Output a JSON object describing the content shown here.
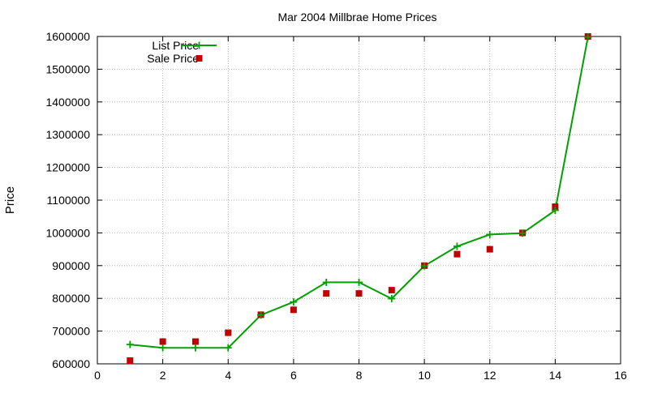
{
  "chart_data": {
    "type": "line",
    "title": "Mar 2004 Millbrae Home Prices",
    "xlabel": "",
    "ylabel": "Price",
    "xlim": [
      0,
      16
    ],
    "ylim": [
      600000,
      1600000
    ],
    "xticks": [
      "0",
      "2",
      "4",
      "6",
      "8",
      "10",
      "12",
      "14",
      "16"
    ],
    "yticks": [
      "600000",
      "700000",
      "800000",
      "900000",
      "1000000",
      "1100000",
      "1200000",
      "1300000",
      "1400000",
      "1500000",
      "1600000"
    ],
    "grid": true,
    "legend_position": "top-left",
    "series": [
      {
        "name": "List Price",
        "style": "line-with-plus-markers",
        "color": "#00a000",
        "x": [
          1,
          2,
          3,
          4,
          5,
          6,
          7,
          8,
          9,
          10,
          11,
          12,
          13,
          14,
          15
        ],
        "y": [
          659000,
          649000,
          649000,
          649000,
          749000,
          789000,
          849000,
          849000,
          799000,
          899000,
          959000,
          995000,
          999000,
          1069000,
          1598000
        ]
      },
      {
        "name": "Sale Price",
        "style": "square-markers",
        "color": "#c00000",
        "x": [
          1,
          2,
          3,
          4,
          5,
          6,
          7,
          8,
          9,
          10,
          11,
          12,
          13,
          14,
          15
        ],
        "y": [
          610000,
          668000,
          668000,
          695000,
          750000,
          765000,
          815000,
          815000,
          825000,
          900000,
          935000,
          950000,
          1000000,
          1080000,
          1600000
        ]
      }
    ]
  }
}
